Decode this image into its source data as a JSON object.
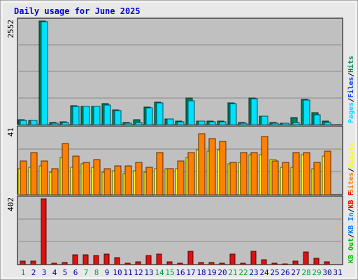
{
  "chart_data": {
    "type": "bar",
    "title": "Daily usage for June 2025",
    "categories": [
      "1",
      "2",
      "3",
      "4",
      "5",
      "6",
      "7",
      "8",
      "9",
      "10",
      "11",
      "12",
      "13",
      "14",
      "15",
      "16",
      "17",
      "18",
      "19",
      "20",
      "21",
      "22",
      "23",
      "24",
      "25",
      "26",
      "27",
      "28",
      "29",
      "30",
      "31"
    ],
    "weekend_days": [
      "1",
      "7",
      "8",
      "14",
      "15",
      "21",
      "22",
      "28",
      "29"
    ],
    "panels": [
      {
        "name": "hits-files-pages",
        "max_label": "2552",
        "ylim": [
          0,
          2552
        ],
        "legend": [
          {
            "label": "Hits",
            "color": "#00805c"
          },
          {
            "label": "Files",
            "color": "#0040ff"
          },
          {
            "label": "Pages",
            "color": "#00e0ff"
          }
        ],
        "series": [
          {
            "name": "Hits",
            "color": "#00805c",
            "values": [
              120,
              110,
              2552,
              50,
              70,
              460,
              450,
              450,
              510,
              360,
              50,
              120,
              430,
              550,
              140,
              80,
              660,
              90,
              80,
              80,
              530,
              50,
              650,
              210,
              50,
              40,
              170,
              620,
              300,
              80,
              0
            ]
          },
          {
            "name": "Pages",
            "color": "#00e0ff",
            "values": [
              110,
              100,
              2530,
              40,
              60,
              450,
              450,
              440,
              490,
              350,
              40,
              60,
              420,
              540,
              130,
              70,
              580,
              80,
              70,
              70,
              520,
              40,
              640,
              200,
              40,
              30,
              60,
              600,
              250,
              60,
              0
            ]
          }
        ]
      },
      {
        "name": "visits-sites",
        "max_label": "41",
        "ylim": [
          0,
          41
        ],
        "legend": [
          {
            "label": "Visits",
            "color": "#ffff00"
          },
          {
            "label": "Sites",
            "color": "#ff8000"
          }
        ],
        "series": [
          {
            "name": "Visits",
            "color": "#ffff00",
            "values": [
              16,
              17,
              18,
              14,
              23,
              17,
              19,
              17,
              14,
              15,
              13,
              15,
              14,
              16,
              16,
              16,
              23,
              28,
              27,
              28,
              19,
              20,
              25,
              25,
              22,
              17,
              17,
              25,
              16,
              24,
              0
            ]
          },
          {
            "name": "Sites",
            "color": "#ff8000",
            "values": [
              21,
              26,
              21,
              16,
              32,
              24,
              20,
              22,
              16,
              18,
              18,
              20,
              17,
              26,
              16,
              21,
              26,
              38,
              35,
              33,
              20,
              26,
              26,
              36,
              21,
              20,
              26,
              26,
              20,
              27,
              0
            ]
          }
        ]
      },
      {
        "name": "kb",
        "max_label": "402",
        "ylim": [
          0,
          402
        ],
        "legend": [
          {
            "label": "KB F",
            "color": "#ff0000"
          },
          {
            "label": "KB In",
            "color": "#0080ff"
          },
          {
            "label": "KB Out",
            "color": "#00c000"
          }
        ],
        "series": [
          {
            "name": "KB F",
            "color": "#e01010",
            "values": [
              20,
              20,
              402,
              8,
              12,
              58,
              58,
              56,
              64,
              42,
              10,
              16,
              56,
              64,
              18,
              10,
              80,
              12,
              12,
              10,
              64,
              8,
              80,
              28,
              8,
              6,
              22,
              76,
              38,
              18,
              0
            ]
          }
        ]
      }
    ]
  },
  "colors": {
    "title": "#0000d8",
    "panel_bg": "#c0c0c0",
    "frame_bg": "#e8e8e8",
    "grid": "#888888",
    "day_label": "#0000a0",
    "weekend_label": "#00a040"
  }
}
